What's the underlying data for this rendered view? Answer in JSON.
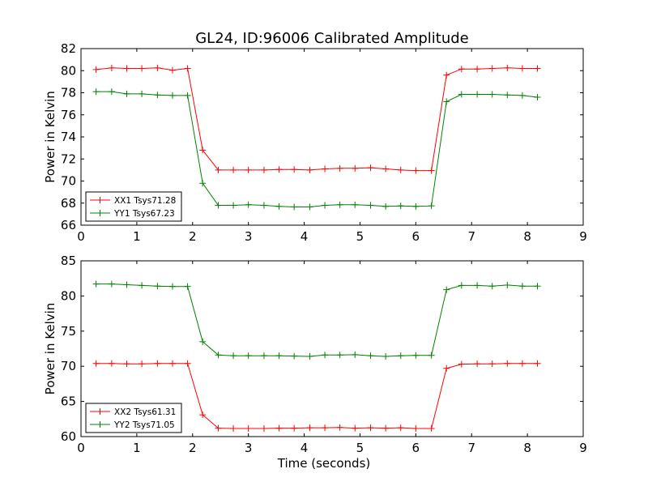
{
  "title": "GL24, ID:96006 Calibrated Amplitude",
  "chart_data": [
    {
      "type": "line",
      "title": "GL24, ID:96006 Calibrated Amplitude",
      "xlabel": "",
      "ylabel": "Power in Kelvin",
      "xlim": [
        0,
        9
      ],
      "ylim": [
        66,
        82
      ],
      "xticks": [
        0,
        1,
        2,
        3,
        4,
        5,
        6,
        7,
        8,
        9
      ],
      "yticks": [
        66,
        68,
        70,
        72,
        74,
        76,
        78,
        80,
        82
      ],
      "grid": false,
      "legend_position": "lower-left",
      "x": [
        0.27,
        0.55,
        0.82,
        1.09,
        1.37,
        1.64,
        1.91,
        2.18,
        2.46,
        2.73,
        3.0,
        3.28,
        3.55,
        3.82,
        4.1,
        4.37,
        4.64,
        4.91,
        5.19,
        5.46,
        5.73,
        6.0,
        6.28,
        6.55,
        6.82,
        7.1,
        7.37,
        7.64,
        7.91,
        8.18
      ],
      "series": [
        {
          "name": "XX1 Tsys71.28",
          "color": "#ff0000",
          "values": [
            80.1,
            80.25,
            80.2,
            80.2,
            80.25,
            80.05,
            80.2,
            72.8,
            71.0,
            71.0,
            71.0,
            71.0,
            71.05,
            71.05,
            71.0,
            71.1,
            71.15,
            71.15,
            71.2,
            71.1,
            71.0,
            70.95,
            70.95,
            79.6,
            80.15,
            80.15,
            80.2,
            80.25,
            80.2,
            80.2
          ]
        },
        {
          "name": "YY1 Tsys67.23",
          "color": "#008000",
          "values": [
            78.1,
            78.1,
            77.9,
            77.9,
            77.8,
            77.75,
            77.75,
            69.8,
            67.8,
            67.8,
            67.85,
            67.8,
            67.7,
            67.65,
            67.65,
            67.8,
            67.85,
            67.85,
            67.8,
            67.7,
            67.75,
            67.7,
            67.75,
            77.2,
            77.85,
            77.85,
            77.85,
            77.8,
            77.75,
            77.6
          ]
        }
      ]
    },
    {
      "type": "line",
      "title": "",
      "xlabel": "Time (seconds)",
      "ylabel": "Power in Kelvin",
      "xlim": [
        0,
        9
      ],
      "ylim": [
        60,
        85
      ],
      "xticks": [
        0,
        1,
        2,
        3,
        4,
        5,
        6,
        7,
        8,
        9
      ],
      "yticks": [
        60,
        65,
        70,
        75,
        80,
        85
      ],
      "grid": false,
      "legend_position": "lower-left",
      "x": [
        0.27,
        0.55,
        0.82,
        1.09,
        1.37,
        1.64,
        1.91,
        2.18,
        2.46,
        2.73,
        3.0,
        3.28,
        3.55,
        3.82,
        4.1,
        4.37,
        4.64,
        4.91,
        5.19,
        5.46,
        5.73,
        6.0,
        6.28,
        6.55,
        6.82,
        7.1,
        7.37,
        7.64,
        7.91,
        8.18
      ],
      "series": [
        {
          "name": "XX2 Tsys61.31",
          "color": "#ff0000",
          "values": [
            70.4,
            70.4,
            70.35,
            70.35,
            70.4,
            70.4,
            70.4,
            63.1,
            61.2,
            61.15,
            61.15,
            61.15,
            61.2,
            61.2,
            61.25,
            61.25,
            61.3,
            61.2,
            61.25,
            61.2,
            61.25,
            61.15,
            61.15,
            69.7,
            70.3,
            70.35,
            70.35,
            70.4,
            70.4,
            70.4
          ]
        },
        {
          "name": "YY2 Tsys71.05",
          "color": "#008000",
          "values": [
            81.7,
            81.7,
            81.6,
            81.5,
            81.4,
            81.35,
            81.35,
            73.5,
            71.6,
            71.5,
            71.5,
            71.5,
            71.5,
            71.45,
            71.4,
            71.6,
            71.6,
            71.65,
            71.5,
            71.4,
            71.5,
            71.55,
            71.55,
            80.9,
            81.5,
            81.5,
            81.4,
            81.55,
            81.4,
            81.4
          ]
        }
      ]
    }
  ]
}
